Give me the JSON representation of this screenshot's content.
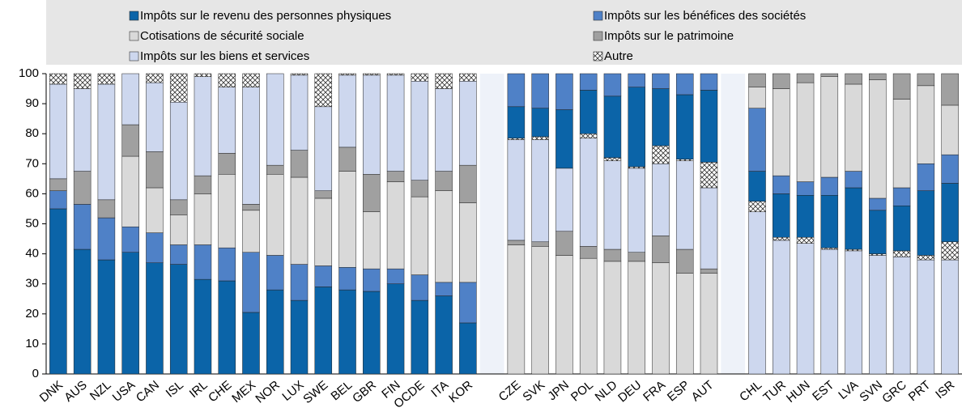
{
  "chart_data": {
    "type": "stacked_bar",
    "categories": [
      "DNK",
      "AUS",
      "NZL",
      "USA",
      "CAN",
      "ISL",
      "IRL",
      "CHE",
      "MEX",
      "NOR",
      "LUX",
      "SWE",
      "BEL",
      "GBR",
      "FIN",
      "OCDE",
      "ITA",
      "KOR",
      "CZE",
      "SVK",
      "JPN",
      "POL",
      "NLD",
      "DEU",
      "FRA",
      "ESP",
      "AUT",
      "CHL",
      "TUR",
      "HUN",
      "EST",
      "LVA",
      "SVN",
      "GRC",
      "PRT",
      "ISR"
    ],
    "series": [
      {
        "name": "Impôts sur le revenu des personnes physiques",
        "color": "#0b64a8",
        "values": [
          55,
          41.5,
          38,
          40.5,
          37,
          36.5,
          31.5,
          31,
          20.5,
          28,
          24.5,
          29,
          28,
          27.5,
          30,
          24.5,
          26,
          17,
          10.5,
          9.5,
          19.5,
          14.5,
          20.5,
          26.5,
          19,
          21.5,
          24,
          10,
          14.5,
          14,
          17.5,
          20.5,
          14.5,
          15,
          21.5,
          19.5
        ]
      },
      {
        "name": "Impôts sur les bénéfices des sociétés",
        "color": "#4f81c7",
        "values": [
          6,
          15,
          14,
          8.5,
          10,
          6.5,
          11.5,
          11,
          20,
          11.5,
          12,
          7,
          7.5,
          7.5,
          5,
          8.5,
          4.5,
          13.5,
          11,
          11.5,
          12,
          5.5,
          7.5,
          4.5,
          5,
          7,
          5.5,
          21,
          6,
          4.5,
          6,
          5.5,
          4,
          6,
          9,
          9.5
        ]
      },
      {
        "name": "Cotisations de sécurité sociale",
        "color": "#d9d9d9",
        "values": [
          0,
          0,
          0,
          23.5,
          15,
          10,
          17,
          24.5,
          14,
          27,
          29,
          22.5,
          32,
          19,
          29,
          26,
          30.5,
          26.5,
          43,
          42.5,
          39.5,
          38.5,
          37.5,
          37.5,
          37,
          33.5,
          33.5,
          7,
          29,
          33,
          33.5,
          29,
          39.5,
          29.5,
          26,
          16.5
        ]
      },
      {
        "name": "Impôts sur le patrimoine",
        "color": "#a0a0a0",
        "values": [
          4,
          11,
          6,
          10.5,
          12,
          5,
          6,
          7,
          2,
          3,
          9,
          2.5,
          8,
          12.5,
          3.5,
          5.5,
          6.5,
          12.5,
          1.5,
          1.5,
          8,
          4,
          4,
          3,
          9,
          8,
          1.5,
          4.5,
          5,
          3,
          1,
          3.5,
          2,
          8.5,
          4,
          10.5
        ]
      },
      {
        "name": "Impôts sur les biens et services",
        "color": "#cdd7ee",
        "values": [
          31.5,
          27.5,
          38.5,
          17,
          23,
          32.5,
          33,
          22,
          39,
          30.5,
          25,
          28,
          24,
          33,
          32,
          33,
          27.5,
          28,
          33.5,
          34,
          21,
          36,
          29.5,
          28,
          24,
          29.5,
          27,
          54,
          44.5,
          43.5,
          41.5,
          41,
          39.5,
          39,
          38,
          38
        ]
      },
      {
        "name": "Autre",
        "color": "url(#hatch)",
        "values": [
          3.5,
          5,
          3.5,
          0,
          3,
          9.5,
          1,
          4.5,
          4.5,
          0,
          0.5,
          11,
          0.5,
          0.5,
          0.5,
          2.5,
          5,
          2.5,
          0.5,
          1,
          0,
          1.5,
          1,
          0.5,
          6,
          0.5,
          8.5,
          3.5,
          1,
          2,
          0.5,
          0.5,
          0.5,
          2,
          1.5,
          6
        ]
      }
    ],
    "ylim": [
      0,
      100
    ],
    "yticks": [
      0,
      10,
      20,
      30,
      40,
      50,
      60,
      70,
      80,
      90,
      100
    ],
    "grid": false
  }
}
